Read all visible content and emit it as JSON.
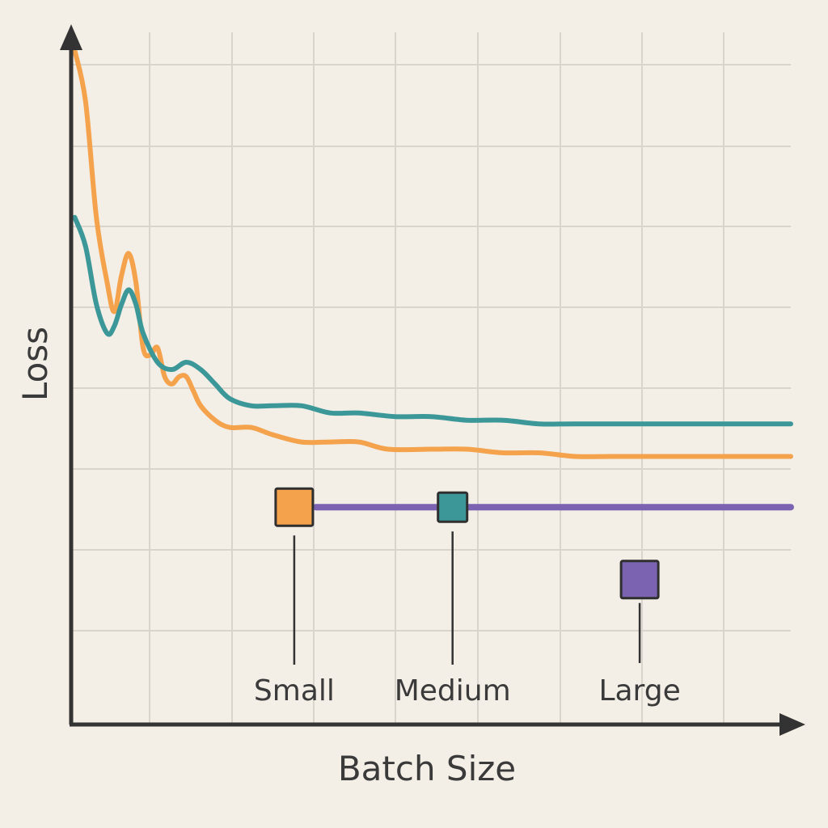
{
  "chart_data": {
    "type": "line",
    "title": "",
    "xlabel": "Batch Size",
    "ylabel": "Loss",
    "grid": true,
    "x_ticks_labeled": false,
    "y_ticks_labeled": false,
    "xlim": [
      0,
      100
    ],
    "ylim": [
      0,
      100
    ],
    "series": [
      {
        "color": "#f4a24c",
        "points": [
          [
            0.5,
            93
          ],
          [
            2,
            86
          ],
          [
            3.5,
            70
          ],
          [
            5,
            61
          ],
          [
            6,
            57
          ],
          [
            7,
            62
          ],
          [
            8,
            65
          ],
          [
            9,
            61
          ],
          [
            10,
            52
          ],
          [
            11,
            51
          ],
          [
            12,
            52
          ],
          [
            13,
            48
          ],
          [
            14,
            47
          ],
          [
            15,
            48
          ],
          [
            16,
            48
          ],
          [
            17,
            46
          ],
          [
            18,
            44
          ],
          [
            20,
            42
          ],
          [
            22,
            41
          ],
          [
            25,
            41
          ],
          [
            28,
            40
          ],
          [
            32,
            39
          ],
          [
            36,
            39
          ],
          [
            40,
            39
          ],
          [
            44,
            38
          ],
          [
            50,
            38
          ],
          [
            55,
            38
          ],
          [
            60,
            37.5
          ],
          [
            65,
            37.5
          ],
          [
            70,
            37
          ],
          [
            75,
            37
          ],
          [
            80,
            37
          ],
          [
            90,
            37
          ],
          [
            100,
            37
          ]
        ]
      },
      {
        "color": "#3c9898",
        "points": [
          [
            0.5,
            70
          ],
          [
            2,
            66
          ],
          [
            3.5,
            58
          ],
          [
            5,
            54
          ],
          [
            6,
            55
          ],
          [
            7,
            58
          ],
          [
            8,
            60
          ],
          [
            9,
            58
          ],
          [
            10,
            54
          ],
          [
            12,
            50
          ],
          [
            14,
            49
          ],
          [
            16,
            50
          ],
          [
            18,
            49
          ],
          [
            20,
            47
          ],
          [
            22,
            45
          ],
          [
            25,
            44
          ],
          [
            28,
            44
          ],
          [
            32,
            44
          ],
          [
            36,
            43
          ],
          [
            40,
            43
          ],
          [
            45,
            42.5
          ],
          [
            50,
            42.5
          ],
          [
            55,
            42
          ],
          [
            60,
            42
          ],
          [
            65,
            41.5
          ],
          [
            70,
            41.5
          ],
          [
            80,
            41.5
          ],
          [
            90,
            41.5
          ],
          [
            100,
            41.5
          ]
        ]
      },
      {
        "color": "#7b63b2",
        "points": [
          [
            34,
            30
          ],
          [
            100,
            30
          ]
        ]
      }
    ],
    "markers": [
      {
        "label": "Small",
        "color": "#f4a24c",
        "x": 31,
        "y": 30
      },
      {
        "label": "Medium",
        "color": "#3c9898",
        "x": 53,
        "y": 30
      },
      {
        "label": "Large",
        "color": "#7b63b2",
        "x": 79,
        "y": 20
      }
    ],
    "legend": {
      "placement": "bottom-inside",
      "items": [
        {
          "label": "Small",
          "color": "#f4a24c"
        },
        {
          "label": "Medium",
          "color": "#3c9898"
        },
        {
          "label": "Large",
          "color": "#7b63b2"
        }
      ]
    }
  }
}
